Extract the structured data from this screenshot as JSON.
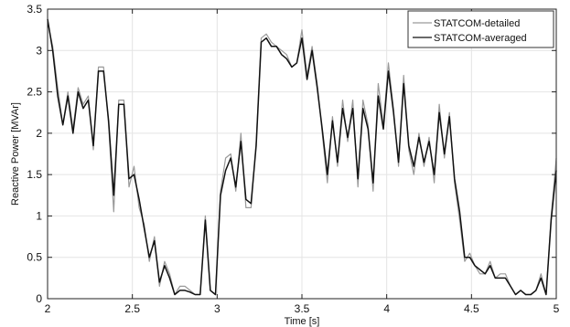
{
  "chart_data": {
    "type": "line",
    "title": "",
    "xlabel": "Time [s]",
    "ylabel": "Reactive Power [MVAr]",
    "xlim": [
      2,
      5
    ],
    "ylim": [
      0,
      3.5
    ],
    "xticks": [
      2,
      2.5,
      3,
      3.5,
      4,
      4.5,
      5
    ],
    "xtick_labels": [
      "2",
      "2.5",
      "3",
      "3.5",
      "4",
      "4.5",
      "5"
    ],
    "yticks": [
      0,
      0.5,
      1,
      1.5,
      2,
      2.5,
      3,
      3.5
    ],
    "ytick_labels": [
      "0",
      "0.5",
      "1",
      "1.5",
      "2",
      "2.5",
      "3",
      "3.5"
    ],
    "grid": true,
    "legend_position": "top-right",
    "x": [
      2.0,
      2.03,
      2.06,
      2.09,
      2.12,
      2.15,
      2.18,
      2.21,
      2.24,
      2.27,
      2.3,
      2.33,
      2.36,
      2.39,
      2.42,
      2.45,
      2.48,
      2.51,
      2.54,
      2.57,
      2.6,
      2.63,
      2.66,
      2.69,
      2.72,
      2.75,
      2.78,
      2.81,
      2.84,
      2.87,
      2.9,
      2.93,
      2.96,
      2.99,
      3.02,
      3.05,
      3.08,
      3.11,
      3.14,
      3.17,
      3.2,
      3.23,
      3.26,
      3.29,
      3.32,
      3.35,
      3.38,
      3.41,
      3.44,
      3.47,
      3.5,
      3.53,
      3.56,
      3.59,
      3.62,
      3.65,
      3.68,
      3.71,
      3.74,
      3.77,
      3.8,
      3.83,
      3.86,
      3.89,
      3.92,
      3.95,
      3.98,
      4.01,
      4.04,
      4.07,
      4.1,
      4.13,
      4.16,
      4.19,
      4.22,
      4.25,
      4.28,
      4.31,
      4.34,
      4.37,
      4.4,
      4.43,
      4.46,
      4.49,
      4.52,
      4.55,
      4.58,
      4.61,
      4.64,
      4.67,
      4.7,
      4.73,
      4.76,
      4.79,
      4.82,
      4.85,
      4.88,
      4.91,
      4.94,
      4.97,
      5.0
    ],
    "series": [
      {
        "name": "STATCOM-detailed",
        "color": "#9a9a9a",
        "values": [
          3.35,
          3.05,
          2.55,
          2.1,
          2.5,
          2.05,
          2.55,
          2.35,
          2.45,
          1.8,
          2.8,
          2.8,
          2.1,
          1.05,
          2.4,
          2.4,
          1.35,
          1.6,
          1.1,
          0.9,
          0.45,
          0.75,
          0.15,
          0.45,
          0.3,
          0.05,
          0.15,
          0.15,
          0.1,
          0.05,
          0.05,
          1.0,
          0.1,
          0.05,
          1.3,
          1.7,
          1.75,
          1.3,
          2.0,
          1.1,
          1.1,
          1.9,
          3.15,
          3.2,
          3.1,
          3.05,
          3.0,
          2.95,
          2.8,
          2.85,
          3.25,
          2.7,
          3.05,
          2.6,
          2.0,
          1.4,
          2.2,
          1.6,
          2.4,
          1.9,
          2.4,
          1.35,
          2.4,
          2.1,
          1.3,
          2.6,
          2.1,
          2.85,
          2.3,
          1.6,
          2.7,
          1.8,
          1.5,
          2.0,
          1.6,
          1.95,
          1.4,
          2.35,
          1.7,
          2.25,
          1.4,
          0.95,
          0.45,
          0.55,
          0.4,
          0.3,
          0.3,
          0.45,
          0.25,
          0.3,
          0.3,
          0.15,
          0.05,
          0.1,
          0.05,
          0.05,
          0.1,
          0.3,
          0.05,
          1.0,
          1.7
        ]
      },
      {
        "name": "STATCOM-averaged",
        "color": "#111111",
        "values": [
          3.38,
          3.0,
          2.45,
          2.1,
          2.45,
          2.0,
          2.5,
          2.3,
          2.4,
          1.85,
          2.75,
          2.75,
          2.15,
          1.25,
          2.35,
          2.35,
          1.45,
          1.5,
          1.2,
          0.85,
          0.5,
          0.7,
          0.2,
          0.4,
          0.25,
          0.05,
          0.1,
          0.1,
          0.08,
          0.05,
          0.05,
          0.95,
          0.1,
          0.05,
          1.25,
          1.55,
          1.7,
          1.35,
          1.9,
          1.2,
          1.15,
          1.85,
          3.1,
          3.15,
          3.05,
          3.05,
          2.95,
          2.9,
          2.8,
          2.85,
          3.15,
          2.65,
          3.0,
          2.55,
          2.05,
          1.5,
          2.15,
          1.65,
          2.3,
          1.95,
          2.3,
          1.45,
          2.3,
          2.05,
          1.4,
          2.45,
          2.05,
          2.75,
          2.25,
          1.65,
          2.6,
          1.85,
          1.6,
          1.95,
          1.65,
          1.9,
          1.5,
          2.25,
          1.75,
          2.2,
          1.45,
          1.05,
          0.5,
          0.5,
          0.4,
          0.35,
          0.3,
          0.4,
          0.25,
          0.25,
          0.25,
          0.15,
          0.05,
          0.1,
          0.05,
          0.05,
          0.1,
          0.25,
          0.05,
          0.95,
          1.55
        ]
      }
    ]
  }
}
